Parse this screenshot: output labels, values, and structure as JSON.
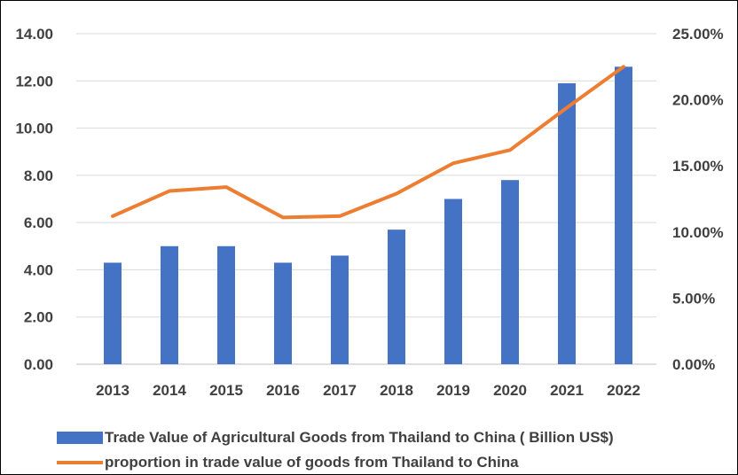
{
  "chart_data": {
    "type": "bar",
    "title": "",
    "xlabel": "",
    "ylabel": "",
    "categories": [
      "2013",
      "2014",
      "2015",
      "2016",
      "2017",
      "2018",
      "2019",
      "2020",
      "2021",
      "2022"
    ],
    "series": [
      {
        "name": "Trade Value of Agricultural Goods from Thailand to China ( Billion US$)",
        "type": "bar",
        "axis": "left",
        "color": "#4472C4",
        "values": [
          4.3,
          5.0,
          5.0,
          4.3,
          4.6,
          5.7,
          7.0,
          7.8,
          11.9,
          12.6
        ]
      },
      {
        "name": "proportion in trade value of goods from Thailand to China",
        "type": "line",
        "axis": "right",
        "color": "#ED7D31",
        "values": [
          0.112,
          0.131,
          0.134,
          0.111,
          0.112,
          0.129,
          0.152,
          0.162,
          0.194,
          0.225
        ]
      }
    ],
    "ylim": [
      0,
      14
    ],
    "y2lim": [
      0,
      0.25
    ],
    "yticks": [
      "0.00",
      "2.00",
      "4.00",
      "6.00",
      "8.00",
      "10.00",
      "12.00",
      "14.00"
    ],
    "y2ticks": [
      "0.00%",
      "5.00%",
      "10.00%",
      "15.00%",
      "20.00%",
      "25.00%"
    ],
    "grid": true,
    "legend": "bottom"
  }
}
